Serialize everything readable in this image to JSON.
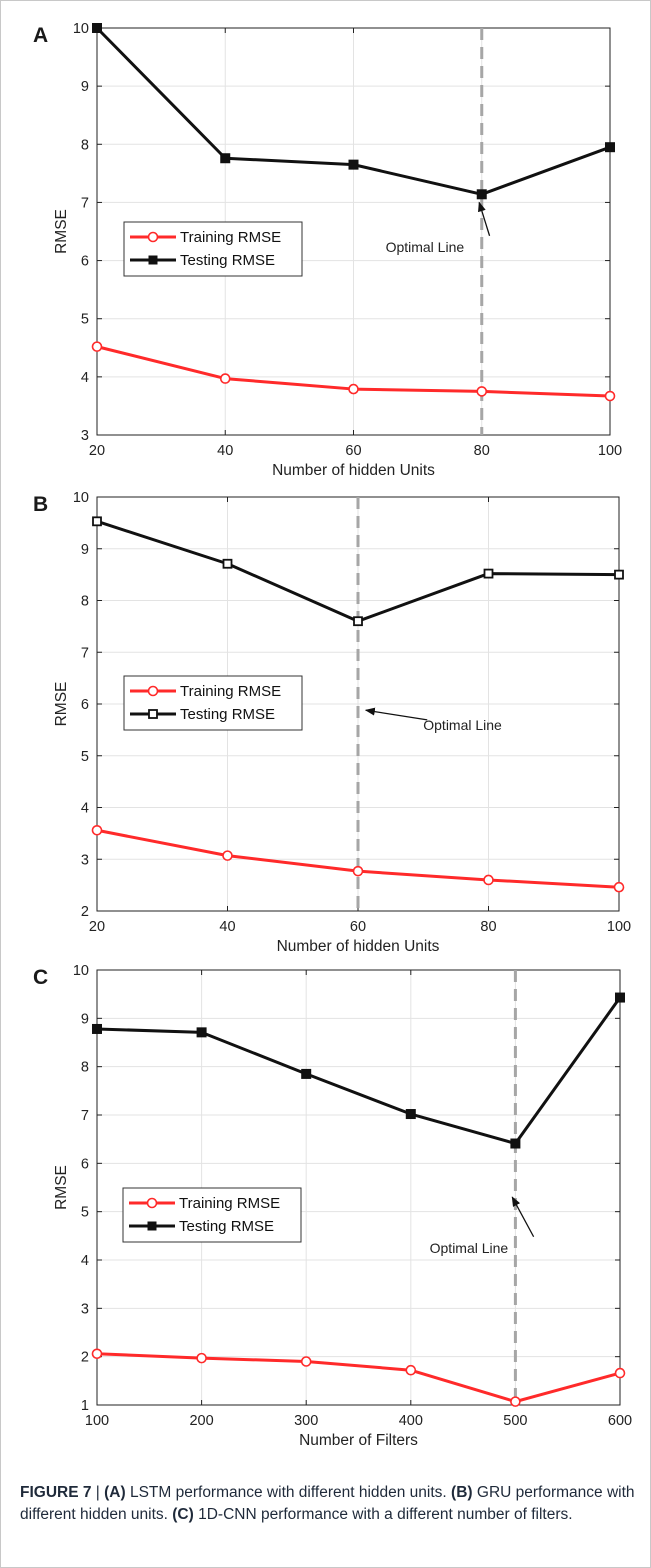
{
  "colors": {
    "training": "#ff2a2a",
    "testing": "#111111",
    "optimal_line": "#a6a6a6",
    "grid": "#e3e3e3",
    "axis": "#222222"
  },
  "chart_data": [
    {
      "type": "line",
      "panel_label": "A",
      "xlabel": "Number of hidden Units",
      "ylabel": "RMSE",
      "xlim": [
        20,
        100
      ],
      "ylim": [
        3,
        10
      ],
      "xticks": [
        "20",
        "40",
        "60",
        "80",
        "100"
      ],
      "yticks": [
        "3",
        "4",
        "5",
        "6",
        "7",
        "8",
        "9",
        "10"
      ],
      "grid": true,
      "x": [
        20,
        40,
        60,
        80,
        100
      ],
      "series": [
        {
          "name": "Training RMSE",
          "marker": "circle",
          "values": [
            4.52,
            3.97,
            3.79,
            3.75,
            3.67
          ]
        },
        {
          "name": "Testing RMSE",
          "marker": "square-filled",
          "values": [
            10.0,
            7.76,
            7.65,
            7.14,
            7.95
          ]
        }
      ],
      "legend_position": "middle-left",
      "optimal_x": 80,
      "annotation": {
        "text": "Optimal Line",
        "text_at": [
          65,
          6.15
        ],
        "arrow_to": [
          79.6,
          7.0
        ]
      }
    },
    {
      "type": "line",
      "panel_label": "B",
      "xlabel": "Number of hidden Units",
      "ylabel": "RMSE",
      "xlim": [
        20,
        100
      ],
      "ylim": [
        2,
        10
      ],
      "xticks": [
        "20",
        "40",
        "60",
        "80",
        "100"
      ],
      "yticks": [
        "2",
        "3",
        "4",
        "5",
        "6",
        "7",
        "8",
        "9",
        "10"
      ],
      "grid": true,
      "x": [
        20,
        40,
        60,
        80,
        100
      ],
      "series": [
        {
          "name": "Training RMSE",
          "marker": "circle",
          "values": [
            3.56,
            3.07,
            2.77,
            2.6,
            2.46
          ]
        },
        {
          "name": "Testing RMSE",
          "marker": "square-open",
          "values": [
            9.53,
            8.71,
            7.6,
            8.52,
            8.5
          ]
        }
      ],
      "legend_position": "middle-left",
      "optimal_x": 60,
      "annotation": {
        "text": "Optimal Line",
        "text_at": [
          70,
          5.5
        ],
        "arrow_to": [
          61.2,
          5.88
        ]
      }
    },
    {
      "type": "line",
      "panel_label": "C",
      "xlabel": "Number of Filters",
      "ylabel": "RMSE",
      "xlim": [
        100,
        600
      ],
      "ylim": [
        1,
        10
      ],
      "xticks": [
        "100",
        "200",
        "300",
        "400",
        "500",
        "600"
      ],
      "yticks": [
        "1",
        "2",
        "3",
        "4",
        "5",
        "6",
        "7",
        "8",
        "9",
        "10"
      ],
      "grid": true,
      "x": [
        100,
        200,
        300,
        400,
        500,
        600
      ],
      "series": [
        {
          "name": "Training RMSE",
          "marker": "circle",
          "values": [
            2.06,
            1.97,
            1.9,
            1.72,
            1.07,
            1.66
          ]
        },
        {
          "name": "Testing RMSE",
          "marker": "square-filled",
          "values": [
            8.78,
            8.71,
            7.85,
            7.02,
            6.41,
            9.43
          ]
        }
      ],
      "legend_position": "middle-left",
      "optimal_x": 500,
      "annotation": {
        "text": "Optimal Line",
        "text_at": [
          418,
          4.15
        ],
        "arrow_to": [
          497,
          5.3
        ]
      }
    }
  ],
  "caption": {
    "figure_label": "FIGURE 7",
    "sep": " | ",
    "parts": [
      {
        "label": "(A)",
        "text": " LSTM performance with different hidden units. "
      },
      {
        "label": "(B)",
        "text": " GRU performance with different hidden units. "
      },
      {
        "label": "(C)",
        "text": " 1D-CNN performance with a different number of filters."
      }
    ]
  }
}
